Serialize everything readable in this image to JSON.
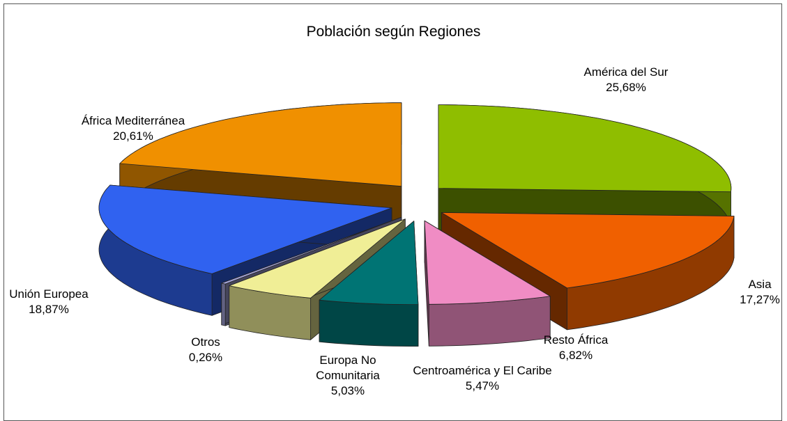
{
  "chart_data": {
    "type": "pie3d",
    "title": "Población según Regiones",
    "categories": [
      "América del Sur",
      "Asia",
      "Resto África",
      "Centroamérica y El Caribe",
      "Europa No Comunitaria",
      "Otros",
      "Unión Europea",
      "África Mediterránea"
    ],
    "values": [
      25.68,
      17.27,
      6.82,
      5.47,
      5.03,
      0.26,
      18.87,
      20.61
    ],
    "value_labels": [
      "25,68%",
      "17,27%",
      "6,82%",
      "5,47%",
      "5,03%",
      "0,26%",
      "18,87%",
      "20,61%"
    ],
    "colors": [
      "#8fbe00",
      "#f06000",
      "#f08cc4",
      "#007474",
      "#f0ee96",
      "#a4a4d8",
      "#3062f0",
      "#f09000"
    ]
  }
}
